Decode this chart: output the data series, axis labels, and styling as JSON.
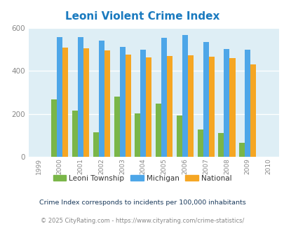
{
  "title": "Leoni Violent Crime Index",
  "all_years": [
    1999,
    2000,
    2001,
    2002,
    2003,
    2004,
    2005,
    2006,
    2007,
    2008,
    2009,
    2010
  ],
  "data_years": [
    2000,
    2001,
    2002,
    2003,
    2004,
    2005,
    2006,
    2007,
    2008,
    2009
  ],
  "leoni": [
    268,
    214,
    115,
    282,
    201,
    249,
    193,
    127,
    113,
    65
  ],
  "michigan": [
    556,
    556,
    541,
    511,
    497,
    552,
    566,
    535,
    500,
    497
  ],
  "national": [
    507,
    504,
    494,
    475,
    463,
    469,
    473,
    466,
    458,
    429
  ],
  "leoni_color": "#7ab648",
  "michigan_color": "#4da6e8",
  "national_color": "#f5a623",
  "bg_color": "#deeef5",
  "title_color": "#1a7abf",
  "ylim": [
    0,
    600
  ],
  "yticks": [
    0,
    200,
    400,
    600
  ],
  "footnote1": "Crime Index corresponds to incidents per 100,000 inhabitants",
  "footnote2": "© 2025 CityRating.com - https://www.cityrating.com/crime-statistics/",
  "legend_labels": [
    "Leoni Township",
    "Michigan",
    "National"
  ],
  "bar_width": 0.27
}
